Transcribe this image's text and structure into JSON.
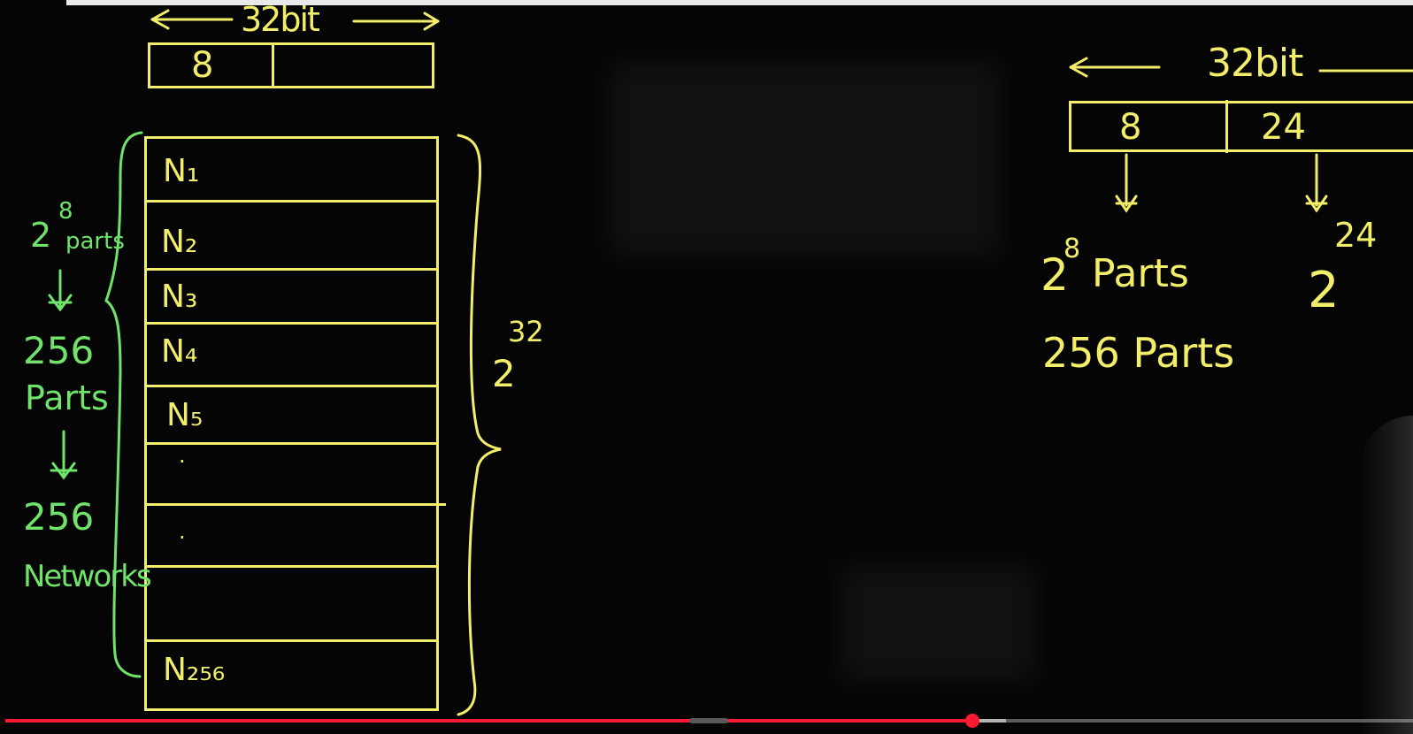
{
  "video": {
    "progress_fraction": 0.687,
    "buffered_fraction": 0.711,
    "accent_color": "#ff1a33"
  },
  "board": {
    "left": {
      "bit_label": "32bit",
      "first_octet": "8",
      "network_rows": [
        "N₁",
        "N₂",
        "N₃",
        "N₄",
        "N₅",
        "·",
        "·",
        "N₂₅₆"
      ],
      "power_base": "2",
      "power_exponent": "32",
      "side_note": {
        "base": "2",
        "exponent": "8",
        "parts": "parts",
        "line_256a": "256",
        "line_parts": "Parts",
        "line_256b": "256",
        "line_networks": "Networks"
      }
    },
    "right": {
      "bit_label": "32bit",
      "octet_a": "8",
      "octet_b": "24",
      "parts_base": "2",
      "parts_exponent": "8",
      "parts_word": "Parts",
      "parts_256": "256 Parts",
      "host_base": "2",
      "host_exponent": "24"
    },
    "ink_yellow": "#f2ee6a",
    "ink_green": "#6fe36a"
  }
}
